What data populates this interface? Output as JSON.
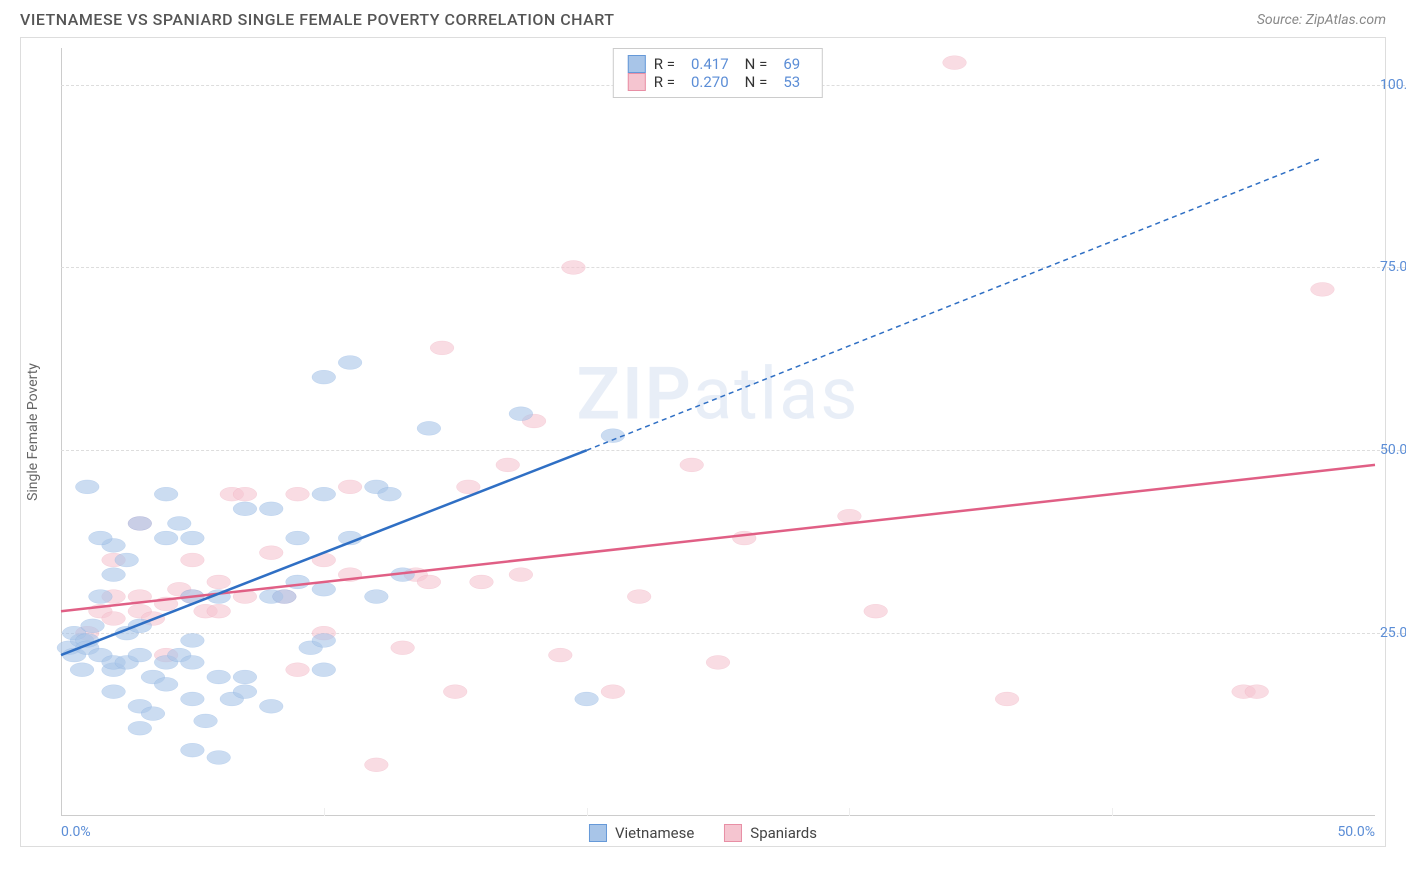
{
  "title": "VIETNAMESE VS SPANIARD SINGLE FEMALE POVERTY CORRELATION CHART",
  "source": "Source: ZipAtlas.com",
  "y_axis_label": "Single Female Poverty",
  "watermark": "ZIPatlas",
  "chart": {
    "type": "scatter",
    "xlim": [
      0,
      50
    ],
    "ylim": [
      0,
      105
    ],
    "x_ticks": [
      0,
      50
    ],
    "x_tick_labels": [
      "0.0%",
      "50.0%"
    ],
    "x_minor_ticks": [
      10,
      20,
      30,
      40
    ],
    "y_ticks": [
      25,
      50,
      75,
      100
    ],
    "y_tick_labels": [
      "25.0%",
      "50.0%",
      "75.0%",
      "100.0%"
    ],
    "background_color": "#ffffff",
    "grid_color": "#dddddd",
    "axis_color": "#cccccc",
    "tick_label_color": "#5b8dd6",
    "marker_radius": 7,
    "marker_stroke_width": 1.5,
    "line_width": 2.5
  },
  "series": {
    "vietnamese": {
      "label": "Vietnamese",
      "fill_color": "#a8c5e8",
      "stroke_color": "#6699d8",
      "line_color": "#2f6fc4",
      "R": "0.417",
      "N": "69",
      "regression": {
        "x1": 0,
        "y1": 22,
        "x2_solid": 20,
        "y2_solid": 50,
        "x2": 48,
        "y2": 90
      },
      "points": [
        [
          0.3,
          23
        ],
        [
          0.5,
          22
        ],
        [
          0.8,
          24
        ],
        [
          0.5,
          25
        ],
        [
          1,
          24
        ],
        [
          1,
          23
        ],
        [
          1.2,
          26
        ],
        [
          1.5,
          22
        ],
        [
          0.8,
          20
        ],
        [
          1.5,
          30
        ],
        [
          2,
          33
        ],
        [
          1,
          45
        ],
        [
          2,
          20
        ],
        [
          2,
          21
        ],
        [
          2.5,
          25
        ],
        [
          2,
          17
        ],
        [
          2.5,
          21
        ],
        [
          3,
          22
        ],
        [
          2.5,
          35
        ],
        [
          3,
          15
        ],
        [
          3,
          12
        ],
        [
          3.5,
          14
        ],
        [
          3.5,
          19
        ],
        [
          3,
          26
        ],
        [
          4,
          21
        ],
        [
          4,
          18
        ],
        [
          4.5,
          22
        ],
        [
          5,
          16
        ],
        [
          5,
          21
        ],
        [
          5.5,
          13
        ],
        [
          4,
          44
        ],
        [
          5,
          9
        ],
        [
          6,
          8
        ],
        [
          6,
          19
        ],
        [
          6.5,
          16
        ],
        [
          7,
          17
        ],
        [
          7,
          19
        ],
        [
          8,
          15
        ],
        [
          8,
          30
        ],
        [
          8.5,
          30
        ],
        [
          9,
          32
        ],
        [
          9.5,
          23
        ],
        [
          10,
          31
        ],
        [
          10,
          20
        ],
        [
          10,
          60
        ],
        [
          11,
          62
        ],
        [
          12,
          45
        ],
        [
          10,
          44
        ],
        [
          11,
          38
        ],
        [
          12,
          30
        ],
        [
          12.5,
          44
        ],
        [
          13,
          33
        ],
        [
          14,
          53
        ],
        [
          8,
          42
        ],
        [
          9,
          38
        ],
        [
          7,
          42
        ],
        [
          5,
          38
        ],
        [
          4,
          38
        ],
        [
          4.5,
          40
        ],
        [
          3,
          40
        ],
        [
          2,
          37
        ],
        [
          1.5,
          38
        ],
        [
          6,
          30
        ],
        [
          5,
          30
        ],
        [
          5,
          24
        ],
        [
          10,
          24
        ],
        [
          20,
          16
        ],
        [
          21,
          52
        ],
        [
          17.5,
          55
        ]
      ]
    },
    "spaniards": {
      "label": "Spaniards",
      "fill_color": "#f5c5d0",
      "stroke_color": "#e88fa5",
      "line_color": "#e05f85",
      "R": "0.270",
      "N": "53",
      "regression": {
        "x1": 0,
        "y1": 28,
        "x2_solid": 50,
        "y2_solid": 48,
        "x2": 50,
        "y2": 48
      },
      "points": [
        [
          1,
          25
        ],
        [
          1.5,
          28
        ],
        [
          2,
          27
        ],
        [
          2,
          30
        ],
        [
          3,
          28
        ],
        [
          3,
          30
        ],
        [
          3.5,
          27
        ],
        [
          4,
          29
        ],
        [
          4,
          22
        ],
        [
          4.5,
          31
        ],
        [
          5,
          30
        ],
        [
          5,
          35
        ],
        [
          5.5,
          28
        ],
        [
          6,
          28
        ],
        [
          6,
          32
        ],
        [
          6.5,
          44
        ],
        [
          7,
          30
        ],
        [
          7,
          44
        ],
        [
          8,
          36
        ],
        [
          8.5,
          30
        ],
        [
          9,
          44
        ],
        [
          9,
          20
        ],
        [
          10,
          35
        ],
        [
          10,
          25
        ],
        [
          11,
          33
        ],
        [
          11,
          45
        ],
        [
          12,
          7
        ],
        [
          13,
          23
        ],
        [
          13.5,
          33
        ],
        [
          14,
          32
        ],
        [
          14.5,
          64
        ],
        [
          15,
          17
        ],
        [
          15.5,
          45
        ],
        [
          16,
          32
        ],
        [
          17,
          48
        ],
        [
          17.5,
          33
        ],
        [
          18,
          54
        ],
        [
          19,
          22
        ],
        [
          19.5,
          75
        ],
        [
          21,
          17
        ],
        [
          22,
          30
        ],
        [
          24,
          48
        ],
        [
          25,
          21
        ],
        [
          26,
          38
        ],
        [
          30,
          41
        ],
        [
          31,
          28
        ],
        [
          34,
          103
        ],
        [
          36,
          16
        ],
        [
          45,
          17
        ],
        [
          45.5,
          17
        ],
        [
          48,
          72
        ],
        [
          3,
          40
        ],
        [
          2,
          35
        ]
      ]
    }
  },
  "legend": {
    "r_label": "R =",
    "n_label": "N ="
  }
}
